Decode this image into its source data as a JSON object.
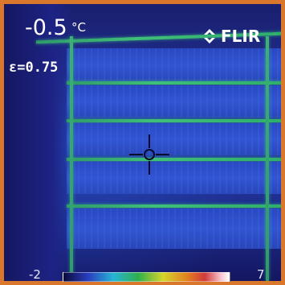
{
  "camera": {
    "brand": "FLIR",
    "temperature": "-0.5",
    "unit": "°C",
    "emissivity": "ε=0.75",
    "scale_min": "-2",
    "scale_max": "7"
  },
  "icons": {
    "logo_icon": "flir-diamond-icon",
    "crosshair": "crosshair-icon"
  },
  "colors": {
    "frame": "#d9772d",
    "accent_green": "#3fbf78",
    "background_blue": "#243aa3"
  }
}
